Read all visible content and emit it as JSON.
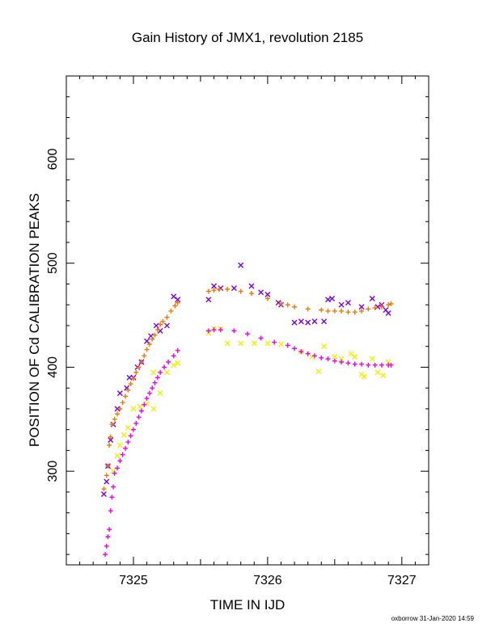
{
  "chart_data": {
    "type": "scatter",
    "title": "Gain History of JMX1, revolution 2185",
    "xlabel": "TIME IN IJD",
    "ylabel": "POSITION OF Cd CALIBRATION PEAKS",
    "xlim": [
      7324.5,
      7327.2
    ],
    "ylim": [
      210,
      680
    ],
    "x_ticks": [
      7325,
      7326,
      7327
    ],
    "y_ticks": [
      300,
      400,
      500,
      600
    ],
    "grid": false,
    "series": [
      {
        "marker": "x",
        "color": "#7b00e0",
        "points": [
          [
            7324.78,
            278
          ],
          [
            7324.8,
            290
          ],
          [
            7324.81,
            305
          ],
          [
            7324.83,
            330
          ],
          [
            7324.85,
            345
          ],
          [
            7324.88,
            360
          ],
          [
            7324.9,
            375
          ],
          [
            7324.95,
            380
          ],
          [
            7324.97,
            390
          ],
          [
            7325.0,
            390
          ],
          [
            7325.03,
            400
          ],
          [
            7325.06,
            405
          ],
          [
            7325.1,
            425
          ],
          [
            7325.13,
            430
          ],
          [
            7325.17,
            440
          ],
          [
            7325.2,
            435
          ],
          [
            7325.25,
            440
          ],
          [
            7325.3,
            468
          ],
          [
            7325.33,
            465
          ],
          [
            7325.56,
            465
          ],
          [
            7325.6,
            478
          ],
          [
            7325.65,
            476
          ],
          [
            7325.75,
            476
          ],
          [
            7325.8,
            498
          ],
          [
            7325.88,
            478
          ],
          [
            7325.95,
            472
          ],
          [
            7326.0,
            470
          ],
          [
            7326.08,
            462
          ],
          [
            7326.1,
            460
          ],
          [
            7326.2,
            443
          ],
          [
            7326.25,
            444
          ],
          [
            7326.3,
            443
          ],
          [
            7326.35,
            444
          ],
          [
            7326.42,
            444
          ],
          [
            7326.45,
            465
          ],
          [
            7326.48,
            466
          ],
          [
            7326.55,
            460
          ],
          [
            7326.6,
            462
          ],
          [
            7326.7,
            458
          ],
          [
            7326.78,
            466
          ],
          [
            7326.82,
            458
          ],
          [
            7326.85,
            460
          ],
          [
            7326.88,
            455
          ],
          [
            7326.9,
            452
          ]
        ]
      },
      {
        "marker": "+",
        "color": "#f07800",
        "points": [
          [
            7324.78,
            283
          ],
          [
            7324.8,
            296
          ],
          [
            7324.81,
            305
          ],
          [
            7324.82,
            325
          ],
          [
            7324.83,
            333
          ],
          [
            7324.84,
            345
          ],
          [
            7324.86,
            350
          ],
          [
            7324.88,
            355
          ],
          [
            7324.9,
            360
          ],
          [
            7324.92,
            366
          ],
          [
            7324.94,
            372
          ],
          [
            7324.96,
            378
          ],
          [
            7324.98,
            384
          ],
          [
            7325.0,
            389
          ],
          [
            7325.02,
            395
          ],
          [
            7325.04,
            400
          ],
          [
            7325.06,
            405
          ],
          [
            7325.08,
            411
          ],
          [
            7325.1,
            417
          ],
          [
            7325.12,
            422
          ],
          [
            7325.14,
            427
          ],
          [
            7325.16,
            431
          ],
          [
            7325.18,
            436
          ],
          [
            7325.2,
            441
          ],
          [
            7325.22,
            444
          ],
          [
            7325.25,
            448
          ],
          [
            7325.28,
            454
          ],
          [
            7325.31,
            459
          ],
          [
            7325.33,
            462
          ],
          [
            7325.56,
            473
          ],
          [
            7325.6,
            474
          ],
          [
            7325.64,
            475
          ],
          [
            7325.7,
            475
          ],
          [
            7325.8,
            473
          ],
          [
            7325.88,
            471
          ],
          [
            7326.0,
            466
          ],
          [
            7326.1,
            461
          ],
          [
            7326.15,
            460
          ],
          [
            7326.2,
            458
          ],
          [
            7326.3,
            456
          ],
          [
            7326.4,
            455
          ],
          [
            7326.45,
            454
          ],
          [
            7326.5,
            454
          ],
          [
            7326.55,
            454
          ],
          [
            7326.6,
            453
          ],
          [
            7326.65,
            453
          ],
          [
            7326.7,
            454
          ],
          [
            7326.75,
            456
          ],
          [
            7326.8,
            457
          ],
          [
            7326.85,
            458
          ],
          [
            7326.9,
            460
          ],
          [
            7326.92,
            461
          ]
        ]
      },
      {
        "marker": "x",
        "color": "#f0f000",
        "points": [
          [
            7324.85,
            300
          ],
          [
            7324.88,
            315
          ],
          [
            7324.9,
            325
          ],
          [
            7324.93,
            335
          ],
          [
            7324.96,
            342
          ],
          [
            7325.0,
            360
          ],
          [
            7325.05,
            362
          ],
          [
            7325.1,
            365
          ],
          [
            7325.15,
            360
          ],
          [
            7325.15,
            395
          ],
          [
            7325.2,
            375
          ],
          [
            7325.25,
            395
          ],
          [
            7325.3,
            402
          ],
          [
            7325.33,
            404
          ],
          [
            7325.56,
            433
          ],
          [
            7325.6,
            437
          ],
          [
            7325.65,
            437
          ],
          [
            7325.7,
            423
          ],
          [
            7325.8,
            423
          ],
          [
            7325.9,
            423
          ],
          [
            7326.0,
            423
          ],
          [
            7326.1,
            422
          ],
          [
            7326.25,
            415
          ],
          [
            7326.33,
            410
          ],
          [
            7326.38,
            396
          ],
          [
            7326.42,
            420
          ],
          [
            7326.5,
            410
          ],
          [
            7326.55,
            408
          ],
          [
            7326.62,
            413
          ],
          [
            7326.65,
            410
          ],
          [
            7326.7,
            393
          ],
          [
            7326.72,
            391
          ],
          [
            7326.78,
            408
          ],
          [
            7326.82,
            395
          ],
          [
            7326.86,
            392
          ],
          [
            7326.9,
            405
          ]
        ]
      },
      {
        "marker": "+",
        "color": "#f000f0",
        "points": [
          [
            7324.79,
            220
          ],
          [
            7324.8,
            228
          ],
          [
            7324.81,
            237
          ],
          [
            7324.82,
            244
          ],
          [
            7324.83,
            262
          ],
          [
            7324.84,
            275
          ],
          [
            7324.85,
            285
          ],
          [
            7324.86,
            298
          ],
          [
            7324.88,
            303
          ],
          [
            7324.9,
            310
          ],
          [
            7324.92,
            316
          ],
          [
            7324.94,
            322
          ],
          [
            7324.96,
            328
          ],
          [
            7324.98,
            334
          ],
          [
            7325.0,
            340
          ],
          [
            7325.02,
            346
          ],
          [
            7325.04,
            352
          ],
          [
            7325.06,
            358
          ],
          [
            7325.08,
            364
          ],
          [
            7325.1,
            370
          ],
          [
            7325.12,
            375
          ],
          [
            7325.14,
            380
          ],
          [
            7325.16,
            385
          ],
          [
            7325.18,
            390
          ],
          [
            7325.2,
            395
          ],
          [
            7325.23,
            400
          ],
          [
            7325.26,
            405
          ],
          [
            7325.3,
            411
          ],
          [
            7325.33,
            416
          ],
          [
            7325.56,
            435
          ],
          [
            7325.6,
            436
          ],
          [
            7325.65,
            436
          ],
          [
            7325.75,
            435
          ],
          [
            7325.85,
            432
          ],
          [
            7325.95,
            428
          ],
          [
            7326.05,
            424
          ],
          [
            7326.15,
            421
          ],
          [
            7326.2,
            418
          ],
          [
            7326.25,
            415
          ],
          [
            7326.3,
            413
          ],
          [
            7326.35,
            411
          ],
          [
            7326.4,
            409
          ],
          [
            7326.45,
            408
          ],
          [
            7326.5,
            406
          ],
          [
            7326.55,
            405
          ],
          [
            7326.6,
            404
          ],
          [
            7326.65,
            403
          ],
          [
            7326.7,
            403
          ],
          [
            7326.75,
            402
          ],
          [
            7326.8,
            402
          ],
          [
            7326.85,
            402
          ],
          [
            7326.9,
            402
          ],
          [
            7326.92,
            402
          ]
        ]
      }
    ]
  },
  "footer": {
    "credit": "oxborrow 31-Jan-2020 14:59"
  }
}
